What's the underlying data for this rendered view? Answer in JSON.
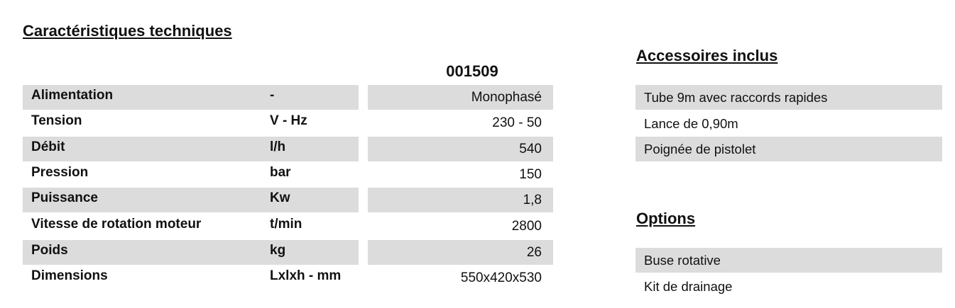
{
  "title": "Caractéristiques techniques",
  "table": {
    "header": "001509",
    "rows": [
      [
        "Alimentation",
        "-",
        "Monophasé"
      ],
      [
        "Tension",
        "V - Hz",
        "230 - 50"
      ],
      [
        "Débit",
        "l/h",
        "540"
      ],
      [
        "Pression",
        "bar",
        "150"
      ],
      [
        "Puissance",
        "Kw",
        "1,8"
      ],
      [
        "Vitesse de rotation moteur",
        "t/min",
        "2800"
      ],
      [
        "Poids",
        "kg",
        "26"
      ],
      [
        "Dimensions",
        "Lxlxh - mm",
        "550x420x530"
      ]
    ]
  },
  "accessories": {
    "title": "Accessoires inclus",
    "items": [
      "Tube 9m avec raccords rapides",
      "Lance de 0,90m",
      "Poignée de pistolet"
    ]
  },
  "options": {
    "title": "Options",
    "items": [
      "Buse rotative",
      "Kit de drainage"
    ]
  }
}
